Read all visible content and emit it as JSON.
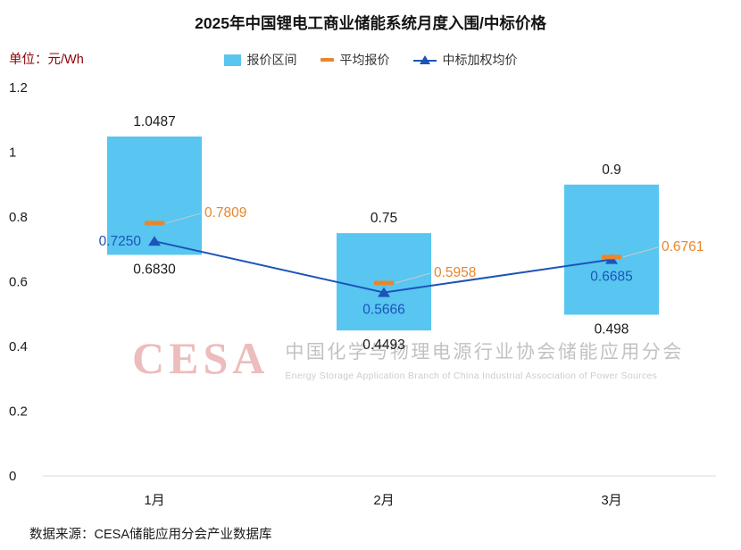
{
  "title": "2025年中国锂电工商业储能系统月度入围/中标价格",
  "unit_label": "单位：元/Wh",
  "legend": {
    "range": "报价区间",
    "avg": "平均报价",
    "weighted": "中标加权均价"
  },
  "watermark": {
    "logo": "CESA",
    "cn": "中国化学与物理电源行业协会储能应用分会",
    "en": "Energy Storage Application Branch of China Industrial Association of Power Sources"
  },
  "source": "数据来源：CESA储能应用分会产业数据库",
  "colors": {
    "bar": "#58C6F1",
    "avg": "#E8862C",
    "weighted": "#1C54B8",
    "leader": "#C9C9C9",
    "axis": "#D8D8D8",
    "text": "#1a1a1a",
    "unit_text": "#8B0000"
  },
  "chart_data": {
    "type": "bar",
    "title": "2025年中国锂电工商业储能系统月度入围/中标价格",
    "ylabel": "元/Wh",
    "categories": [
      "1月",
      "2月",
      "3月"
    ],
    "series": [
      {
        "name": "报价区间",
        "type": "range-bar",
        "low": [
          0.683,
          0.4493,
          0.498
        ],
        "high": [
          1.0487,
          0.75,
          0.9
        ]
      },
      {
        "name": "平均报价",
        "type": "tick-marker",
        "values": [
          0.7809,
          0.5958,
          0.6761
        ]
      },
      {
        "name": "中标加权均价",
        "type": "line",
        "values": [
          0.725,
          0.5666,
          0.6685
        ]
      }
    ],
    "labels": {
      "high": [
        "1.0487",
        "0.75",
        "0.9"
      ],
      "low": [
        "0.6830",
        "0.4493",
        "0.498"
      ],
      "avg": [
        "0.7809",
        "0.5958",
        "0.6761"
      ],
      "weighted": [
        "0.7250",
        "0.5666",
        "0.6685"
      ]
    },
    "ylim": [
      0,
      1.2
    ],
    "yticks": [
      "1.2",
      "1",
      "0.8",
      "0.6",
      "0.4",
      "0.2",
      "0"
    ],
    "grid": false,
    "legend_position": "top"
  }
}
